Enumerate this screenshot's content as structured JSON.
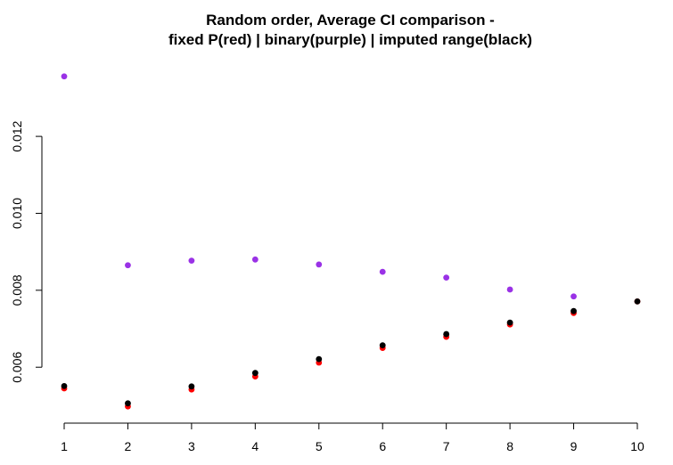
{
  "chart_data": {
    "type": "scatter",
    "title": "Random order, Average CI comparison -",
    "subtitle": "fixed P(red) | binary(purple) | imputed range(black)",
    "xlabel": "",
    "ylabel": "",
    "x_ticks": [
      "1",
      "2",
      "3",
      "4",
      "5",
      "6",
      "7",
      "8",
      "9",
      "10"
    ],
    "y_ticks": [
      "0.006",
      "0.008",
      "0.010",
      "0.012"
    ],
    "xlim": [
      1,
      10
    ],
    "ylim": [
      0.0045,
      0.0136
    ],
    "grid": false,
    "series": [
      {
        "color": "#9a32e6",
        "x": [
          1,
          2,
          3,
          4,
          5,
          6,
          7,
          8,
          9
        ],
        "values": [
          0.01356,
          0.00865,
          0.00877,
          0.0088,
          0.00867,
          0.00848,
          0.00833,
          0.00802,
          0.00784
        ]
      },
      {
        "color": "#ff0000",
        "x": [
          1,
          2,
          3,
          4,
          5,
          6,
          7,
          8,
          9,
          10
        ],
        "values": [
          0.00545,
          0.00498,
          0.00542,
          0.00576,
          0.00612,
          0.0065,
          0.00679,
          0.00711,
          0.00741,
          0.00771
        ]
      },
      {
        "color": "#000000",
        "x": [
          1,
          2,
          3,
          4,
          5,
          6,
          7,
          8,
          9,
          10
        ],
        "values": [
          0.00551,
          0.00506,
          0.0055,
          0.00585,
          0.00621,
          0.00657,
          0.00686,
          0.00716,
          0.00746,
          0.00771
        ]
      }
    ]
  }
}
